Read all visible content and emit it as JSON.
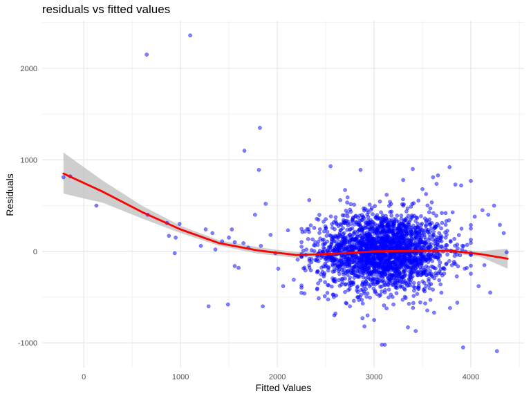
{
  "chart_data": {
    "type": "scatter",
    "title": "residuals vs fitted values",
    "xlabel": "Fitted Values",
    "ylabel": "Residuals",
    "xlim": [
      -430,
      4550
    ],
    "ylim": [
      -1270,
      2520
    ],
    "x_ticks": [
      0,
      1000,
      2000,
      3000,
      4000
    ],
    "x_tick_labels": [
      "0",
      "1000",
      "2000",
      "3000",
      "4000"
    ],
    "y_ticks": [
      -1000,
      0,
      1000,
      2000
    ],
    "y_tick_labels": [
      "-1000",
      "0",
      "1000",
      "2000"
    ],
    "grid": true,
    "point_color": "#0000ff",
    "smooth_color": "#ff0000",
    "ribbon_color": "#bebebe",
    "points": [
      [
        -210,
        810
      ],
      [
        -140,
        820
      ],
      [
        130,
        500
      ],
      [
        650,
        2150
      ],
      [
        1100,
        2360
      ],
      [
        660,
        400
      ],
      [
        860,
        310
      ],
      [
        880,
        170
      ],
      [
        950,
        150
      ],
      [
        940,
        -20
      ],
      [
        990,
        300
      ],
      [
        1210,
        60
      ],
      [
        1260,
        240
      ],
      [
        1290,
        -600
      ],
      [
        1330,
        200
      ],
      [
        1360,
        20
      ],
      [
        1430,
        110
      ],
      [
        1490,
        -580
      ],
      [
        1500,
        150
      ],
      [
        1530,
        240
      ],
      [
        1560,
        100
      ],
      [
        1560,
        -160
      ],
      [
        1600,
        -180
      ],
      [
        1650,
        90
      ],
      [
        1660,
        1100
      ],
      [
        1700,
        40
      ],
      [
        1770,
        400
      ],
      [
        1810,
        890
      ],
      [
        1820,
        1350
      ],
      [
        1830,
        60
      ],
      [
        1850,
        -600
      ],
      [
        1880,
        520
      ],
      [
        1930,
        180
      ],
      [
        1980,
        -20
      ],
      [
        2010,
        -190
      ],
      [
        2060,
        -380
      ],
      [
        2110,
        230
      ],
      [
        2170,
        -310
      ],
      [
        2210,
        -90
      ],
      [
        2280,
        -460
      ],
      [
        2330,
        560
      ],
      [
        2450,
        -70
      ],
      [
        2490,
        -490
      ],
      [
        2550,
        930
      ],
      [
        2600,
        -680
      ],
      [
        2650,
        560
      ],
      [
        2700,
        670
      ],
      [
        2750,
        -600
      ],
      [
        2860,
        890
      ],
      [
        2880,
        -730
      ],
      [
        2900,
        -820
      ],
      [
        3000,
        -750
      ],
      [
        3080,
        -1020
      ],
      [
        3110,
        -1020
      ],
      [
        3200,
        -580
      ],
      [
        3300,
        780
      ],
      [
        3350,
        -830
      ],
      [
        3400,
        900
      ],
      [
        3430,
        -870
      ],
      [
        3500,
        680
      ],
      [
        3610,
        810
      ],
      [
        3620,
        -670
      ],
      [
        3660,
        830
      ],
      [
        3700,
        420
      ],
      [
        3780,
        920
      ],
      [
        3840,
        730
      ],
      [
        3860,
        -560
      ],
      [
        3900,
        720
      ],
      [
        3920,
        -1050
      ],
      [
        4000,
        770
      ],
      [
        4040,
        380
      ],
      [
        4080,
        -380
      ],
      [
        4120,
        450
      ],
      [
        4140,
        -150
      ],
      [
        4180,
        400
      ],
      [
        4200,
        -450
      ],
      [
        4240,
        500
      ],
      [
        4270,
        -1090
      ],
      [
        4300,
        290
      ],
      [
        4340,
        200
      ],
      [
        4370,
        -10
      ]
    ],
    "cloud": {
      "count": 2300,
      "x_center": 3100,
      "x_spread": 330,
      "x_range": [
        2250,
        4000
      ],
      "y_center": 0,
      "y_spread": 215,
      "y_range": [
        -700,
        880
      ]
    },
    "smooth_x": [
      -210,
      200,
      600,
      1000,
      1400,
      1800,
      2200,
      2600,
      3000,
      3400,
      3800,
      4100,
      4380
    ],
    "smooth_y": [
      850,
      650,
      430,
      240,
      90,
      10,
      -40,
      -25,
      0,
      5,
      5,
      -30,
      -80
    ],
    "ribbon_upper": [
      1080,
      770,
      500,
      280,
      120,
      45,
      -10,
      5,
      25,
      30,
      30,
      0,
      30
    ],
    "ribbon_lower": [
      630,
      530,
      360,
      200,
      60,
      -25,
      -70,
      -55,
      -25,
      -20,
      -20,
      -60,
      -190
    ]
  }
}
